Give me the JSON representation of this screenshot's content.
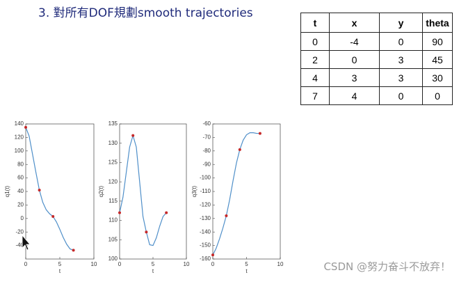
{
  "title": "3. 對所有DOF規劃smooth trajectories",
  "table": {
    "header": [
      "t",
      "x",
      "y",
      "theta"
    ],
    "rows": [
      [
        0,
        -4,
        0,
        90
      ],
      [
        2,
        0,
        3,
        45
      ],
      [
        4,
        3,
        3,
        30
      ],
      [
        7,
        4,
        0,
        0
      ]
    ]
  },
  "watermark": "CSDN @努力奋斗不放弃！",
  "chart_data": [
    {
      "type": "line",
      "xlabel": "t",
      "ylabel": "q1(t)",
      "xlim": [
        0,
        10
      ],
      "xticks": [
        0,
        5,
        10
      ],
      "ylim": [
        -60,
        140
      ],
      "yticks": [
        -40,
        -20,
        0,
        20,
        40,
        60,
        80,
        100,
        120,
        140
      ],
      "x": [
        0,
        0.5,
        1,
        1.5,
        2,
        2.5,
        3,
        3.5,
        4,
        4.5,
        5,
        5.5,
        6,
        6.5,
        7
      ],
      "series": [
        {
          "color": "#4f8fc9",
          "values": [
            135,
            122,
            95,
            68,
            42,
            24,
            13,
            7,
            3,
            -5,
            -16,
            -28,
            -38,
            -45,
            -47
          ]
        }
      ],
      "points": {
        "color": "#c62828",
        "x": [
          0,
          2,
          4,
          7
        ],
        "values": [
          135,
          42,
          3,
          -47
        ]
      }
    },
    {
      "type": "line",
      "xlabel": "t",
      "ylabel": "q2(t)",
      "xlim": [
        0,
        10
      ],
      "xticks": [
        0,
        5,
        10
      ],
      "ylim": [
        100,
        135
      ],
      "yticks": [
        100,
        105,
        110,
        115,
        120,
        125,
        130,
        135
      ],
      "x": [
        0,
        0.5,
        1,
        1.5,
        2,
        2.5,
        3,
        3.5,
        4,
        4.5,
        5,
        5.5,
        6,
        6.5,
        7
      ],
      "series": [
        {
          "color": "#4f8fc9",
          "values": [
            112,
            116,
            122.5,
            129,
            132,
            129,
            120,
            111,
            107,
            103.7,
            103.5,
            105.5,
            108.5,
            111,
            112
          ]
        }
      ],
      "points": {
        "color": "#c62828",
        "x": [
          0,
          2,
          4,
          7
        ],
        "values": [
          112,
          132,
          107,
          112
        ]
      }
    },
    {
      "type": "line",
      "xlabel": "t",
      "ylabel": "q3(t)",
      "xlim": [
        0,
        10
      ],
      "xticks": [
        0,
        5,
        10
      ],
      "ylim": [
        -160,
        -60
      ],
      "yticks": [
        -160,
        -150,
        -140,
        -130,
        -120,
        -110,
        -100,
        -90,
        -80,
        -70,
        -60
      ],
      "x": [
        0,
        0.5,
        1,
        1.5,
        2,
        2.5,
        3,
        3.5,
        4,
        4.5,
        5,
        5.5,
        6,
        6.5,
        7
      ],
      "series": [
        {
          "color": "#4f8fc9",
          "values": [
            -157,
            -152,
            -145,
            -137,
            -128,
            -116,
            -102,
            -89,
            -79,
            -72,
            -68,
            -66.5,
            -66.5,
            -67,
            -67
          ]
        }
      ],
      "points": {
        "color": "#c62828",
        "x": [
          0,
          2,
          4,
          7
        ],
        "values": [
          -157,
          -128,
          -79,
          -67
        ]
      }
    }
  ]
}
